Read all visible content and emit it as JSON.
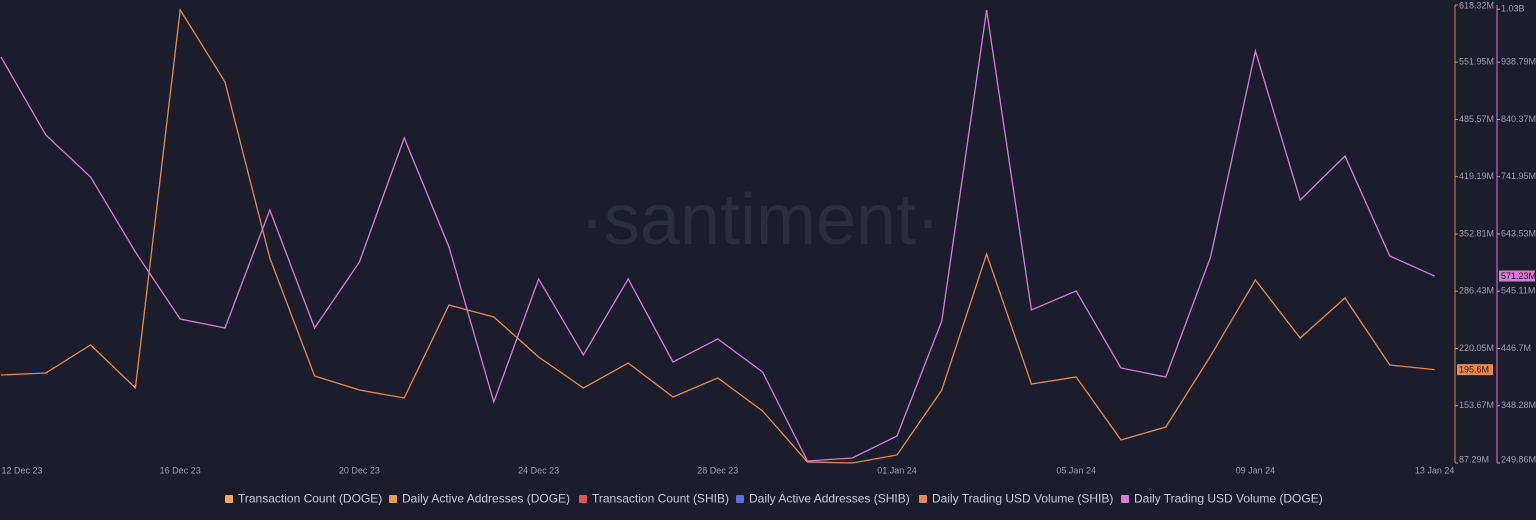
{
  "chart_data": {
    "type": "line",
    "watermark": "·santiment·",
    "categories": [
      "12 Dec 23",
      null,
      null,
      null,
      "16 Dec 23",
      null,
      null,
      null,
      "20 Dec 23",
      null,
      null,
      null,
      "24 Dec 23",
      null,
      null,
      null,
      "28 Dec 23",
      null,
      null,
      null,
      "01 Jan 24",
      null,
      null,
      null,
      "05 Jan 24",
      null,
      null,
      null,
      "09 Jan 24",
      null,
      null,
      null,
      "13 Jan 24"
    ],
    "ylim": [
      87.29,
      618.32
    ],
    "yticks": [
      {
        "value": 87.29,
        "label": "87.29M"
      },
      {
        "value": 153.67,
        "label": "153.67M"
      },
      {
        "value": 220.05,
        "label": "220.05M"
      },
      {
        "value": 286.43,
        "label": "286.43M"
      },
      {
        "value": 352.81,
        "label": "352.81M"
      },
      {
        "value": 419.19,
        "label": "419.19M"
      },
      {
        "value": 485.57,
        "label": "485.57M"
      },
      {
        "value": 551.95,
        "label": "551.95M"
      },
      {
        "value": 618.32,
        "label": "618.32M"
      }
    ],
    "y2lim": [
      249.86,
      1037.18
    ],
    "y2ticks": [
      {
        "value": 249.86,
        "label": "249.86M"
      },
      {
        "value": 348.28,
        "label": "348.28M"
      },
      {
        "value": 446.7,
        "label": "446.7M"
      },
      {
        "value": 545.11,
        "label": "545.11M"
      },
      {
        "value": 643.53,
        "label": "643.53M"
      },
      {
        "value": 741.95,
        "label": "741.95M"
      },
      {
        "value": 840.37,
        "label": "840.37M"
      },
      {
        "value": 938.79,
        "label": "938.79M"
      },
      {
        "value": 1030,
        "label": "1.03B"
      }
    ],
    "series": [
      {
        "name": "Transaction Count (DOGE)",
        "color": "#f5a95a"
      },
      {
        "name": "Daily Active Addresses (DOGE)",
        "color": "#ee9a4c"
      },
      {
        "name": "Transaction Count (SHIB)",
        "color": "#e25555"
      },
      {
        "name": "Daily Active Addresses (SHIB)",
        "color": "#5b6ee8"
      },
      {
        "name": "Daily Trading USD Volume (SHIB)",
        "color": "#e8894a",
        "axis": "y",
        "values": [
          189.3,
          191.6,
          224.1,
          174.3,
          612.6,
          529.1,
          325.0,
          188.2,
          171.9,
          162.7,
          270.5,
          256.6,
          210.2,
          174.3,
          203.2,
          163.8,
          185.9,
          147.6,
          88.5,
          87.3,
          96.6,
          171.9,
          329.6,
          178.9,
          187.0,
          114.0,
          129.0,
          211.4,
          299.5,
          232.2,
          278.6,
          200.9,
          195.6
        ],
        "value_labels": [
          null,
          null,
          null,
          null,
          null,
          null,
          null,
          null,
          null,
          null,
          null,
          null,
          null,
          null,
          null,
          null,
          null,
          null,
          null,
          null,
          null,
          null,
          null,
          null,
          null,
          null,
          null,
          null,
          null,
          null,
          null,
          null,
          "195.6M"
        ]
      },
      {
        "name": "Daily Trading USD Volume (DOGE)",
        "color": "#d87ad8",
        "axis": "y2",
        "values": [
          947.8,
          813.7,
          741.5,
          612.6,
          497.4,
          482.0,
          684.8,
          482.0,
          595.4,
          808.6,
          621.2,
          354.8,
          566.2,
          435.6,
          566.2,
          423.5,
          463.1,
          406.3,
          253.3,
          258.5,
          296.3,
          494.0,
          1028.6,
          512.9,
          545.6,
          413.2,
          397.7,
          604.0,
          958.1,
          702.0,
          777.6,
          605.7,
          571.23
        ],
        "value_labels": [
          null,
          null,
          null,
          null,
          null,
          null,
          null,
          null,
          null,
          null,
          null,
          null,
          null,
          null,
          null,
          null,
          null,
          null,
          null,
          null,
          null,
          null,
          null,
          null,
          null,
          null,
          null,
          null,
          null,
          null,
          null,
          null,
          "571.23M"
        ]
      }
    ]
  }
}
